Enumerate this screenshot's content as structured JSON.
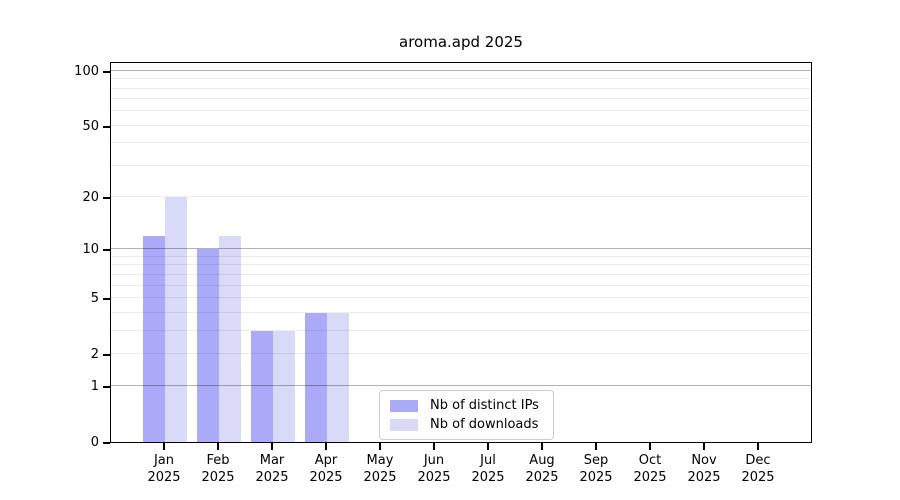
{
  "chart_data": {
    "type": "bar",
    "title": "aroma.apd 2025",
    "categories": [
      "Jan",
      "Feb",
      "Mar",
      "Apr",
      "May",
      "Jun",
      "Jul",
      "Aug",
      "Sep",
      "Oct",
      "Nov",
      "Dec"
    ],
    "x_tick_line2": "2025",
    "series": [
      {
        "name": "Nb of distinct IPs",
        "color": "#aaaaf8",
        "values": [
          12,
          10,
          3,
          4,
          0,
          0,
          0,
          0,
          0,
          0,
          0,
          0
        ]
      },
      {
        "name": "Nb of downloads",
        "color": "#d9d9f8",
        "values": [
          20,
          12,
          3,
          4,
          0,
          0,
          0,
          0,
          0,
          0,
          0,
          0
        ]
      }
    ],
    "y_axis": {
      "scale": "log10(y+1)",
      "tick_values": [
        0,
        1,
        2,
        5,
        10,
        20,
        50,
        100
      ],
      "max": 113,
      "major_gridlines": [
        1,
        10,
        100
      ],
      "minor_gridlines": [
        2,
        3,
        4,
        5,
        6,
        7,
        8,
        9,
        20,
        30,
        40,
        50,
        60,
        70,
        80,
        90
      ]
    },
    "legend": {
      "position": "bottom-center",
      "border_color": "#cccccc"
    },
    "colors": {
      "spine": "#000000",
      "background": "#ffffff"
    },
    "grid": true
  }
}
